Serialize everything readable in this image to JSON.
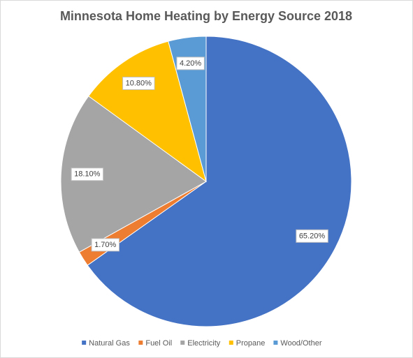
{
  "chart_data": {
    "type": "pie",
    "title": "Minnesota Home Heating by Energy Source 2018",
    "categories": [
      "Natural Gas",
      "Fuel Oil",
      "Electricity",
      "Propane",
      "Wood/Other"
    ],
    "values": [
      65.2,
      1.7,
      18.1,
      10.8,
      4.2
    ],
    "value_labels": [
      "65.20%",
      "1.70%",
      "18.10%",
      "10.80%",
      "4.20%"
    ],
    "colors": [
      "#4472c4",
      "#ed7d31",
      "#a5a5a5",
      "#ffc000",
      "#5b9bd5"
    ],
    "legend": "bottom"
  }
}
